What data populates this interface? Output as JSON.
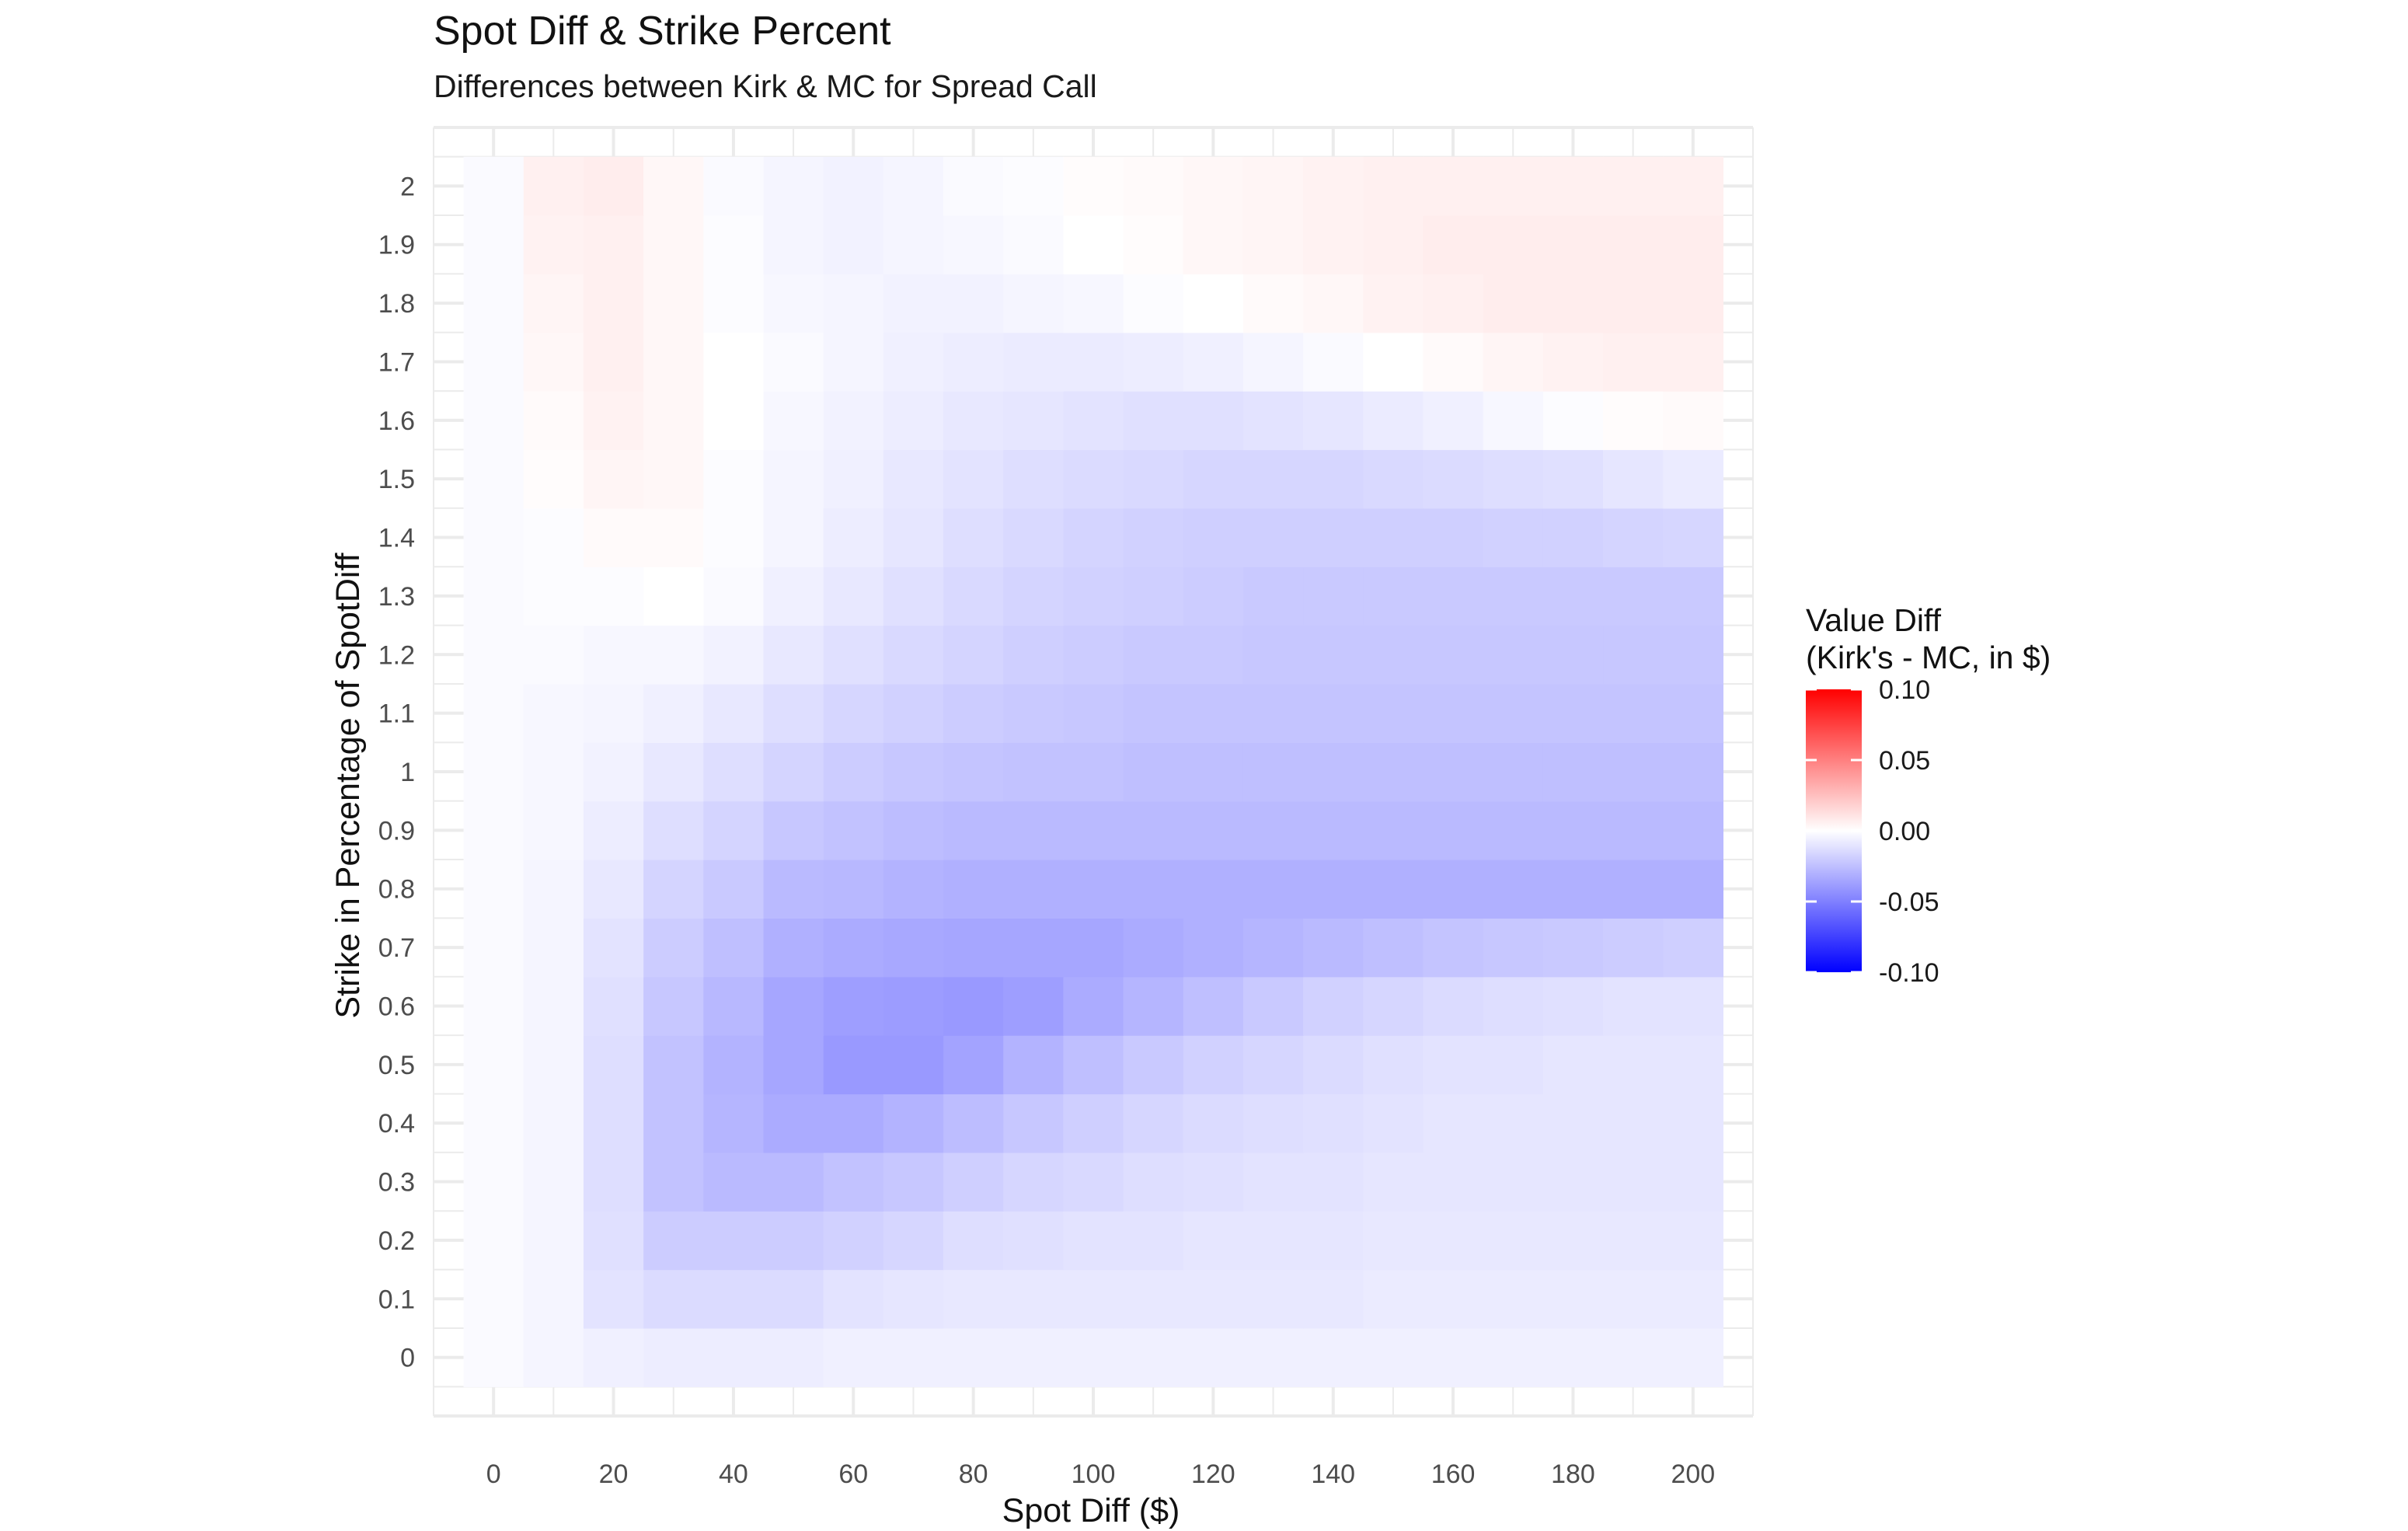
{
  "chart_data": {
    "type": "heatmap",
    "title": "Spot Diff & Strike Percent",
    "subtitle": "Differences between Kirk & MC for Spread Call",
    "xlabel": "Spot Diff ($)",
    "ylabel": "Strike in Percentage of SpotDiff",
    "x": [
      0,
      10,
      20,
      30,
      40,
      50,
      60,
      70,
      80,
      90,
      100,
      110,
      120,
      130,
      140,
      150,
      160,
      170,
      180,
      190,
      200
    ],
    "y": [
      0,
      0.1,
      0.2,
      0.3,
      0.4,
      0.5,
      0.6,
      0.7,
      0.8,
      0.9,
      1,
      1.1,
      1.2,
      1.3,
      1.4,
      1.5,
      1.6,
      1.7,
      1.8,
      1.9,
      2
    ],
    "x_ticks": [
      "0",
      "20",
      "40",
      "60",
      "80",
      "100",
      "120",
      "140",
      "160",
      "180",
      "200"
    ],
    "x_tick_values": [
      0,
      20,
      40,
      60,
      80,
      100,
      120,
      140,
      160,
      180,
      200
    ],
    "y_ticks": [
      "0",
      "0.1",
      "0.2",
      "0.3",
      "0.4",
      "0.5",
      "0.6",
      "0.7",
      "0.8",
      "0.9",
      "1",
      "1.1",
      "1.2",
      "1.3",
      "1.4",
      "1.5",
      "1.6",
      "1.7",
      "1.8",
      "1.9",
      "2"
    ],
    "xlim": [
      -10,
      210
    ],
    "ylim": [
      -0.1,
      2.1
    ],
    "grid": true,
    "legend": {
      "title_line1": "Value Diff",
      "title_line2": "(Kirk's - MC, in $)",
      "ticks": [
        "0.10",
        "0.05",
        "0.00",
        "-0.05",
        "-0.10"
      ],
      "tick_values": [
        0.1,
        0.05,
        0,
        -0.05,
        -0.1
      ],
      "range": [
        -0.1,
        0.1
      ],
      "low_color": "#0000ff",
      "mid_color": "#ffffff",
      "high_color": "#ff0000",
      "placement": "right"
    },
    "z": [
      [
        -0.002,
        -0.004,
        -0.006,
        -0.007,
        -0.007,
        -0.007,
        -0.006,
        -0.006,
        -0.006,
        -0.006,
        -0.006,
        -0.006,
        -0.006,
        -0.006,
        -0.006,
        -0.006,
        -0.006,
        -0.006,
        -0.006,
        -0.006,
        -0.006
      ],
      [
        -0.002,
        -0.004,
        -0.011,
        -0.014,
        -0.014,
        -0.014,
        -0.011,
        -0.01,
        -0.009,
        -0.009,
        -0.009,
        -0.009,
        -0.009,
        -0.009,
        -0.009,
        -0.008,
        -0.008,
        -0.008,
        -0.008,
        -0.008,
        -0.008
      ],
      [
        -0.002,
        -0.004,
        -0.012,
        -0.02,
        -0.02,
        -0.02,
        -0.018,
        -0.016,
        -0.013,
        -0.012,
        -0.011,
        -0.011,
        -0.01,
        -0.01,
        -0.01,
        -0.009,
        -0.009,
        -0.009,
        -0.009,
        -0.009,
        -0.009
      ],
      [
        -0.002,
        -0.004,
        -0.013,
        -0.024,
        -0.027,
        -0.027,
        -0.024,
        -0.022,
        -0.019,
        -0.016,
        -0.015,
        -0.013,
        -0.012,
        -0.011,
        -0.011,
        -0.01,
        -0.01,
        -0.01,
        -0.01,
        -0.01,
        -0.01
      ],
      [
        -0.002,
        -0.004,
        -0.013,
        -0.024,
        -0.029,
        -0.033,
        -0.033,
        -0.03,
        -0.026,
        -0.022,
        -0.019,
        -0.016,
        -0.014,
        -0.013,
        -0.012,
        -0.011,
        -0.01,
        -0.01,
        -0.01,
        -0.01,
        -0.01
      ],
      [
        -0.002,
        -0.004,
        -0.013,
        -0.024,
        -0.03,
        -0.035,
        -0.04,
        -0.04,
        -0.036,
        -0.03,
        -0.025,
        -0.021,
        -0.018,
        -0.016,
        -0.014,
        -0.012,
        -0.011,
        -0.011,
        -0.01,
        -0.01,
        -0.01
      ],
      [
        -0.002,
        -0.004,
        -0.012,
        -0.022,
        -0.028,
        -0.035,
        -0.038,
        -0.039,
        -0.04,
        -0.038,
        -0.033,
        -0.029,
        -0.025,
        -0.021,
        -0.018,
        -0.016,
        -0.014,
        -0.013,
        -0.012,
        -0.011,
        -0.011
      ],
      [
        -0.002,
        -0.004,
        -0.011,
        -0.02,
        -0.025,
        -0.031,
        -0.033,
        -0.034,
        -0.035,
        -0.035,
        -0.035,
        -0.033,
        -0.031,
        -0.029,
        -0.027,
        -0.025,
        -0.023,
        -0.022,
        -0.021,
        -0.02,
        -0.019
      ],
      [
        -0.002,
        -0.004,
        -0.009,
        -0.017,
        -0.021,
        -0.027,
        -0.028,
        -0.03,
        -0.031,
        -0.031,
        -0.031,
        -0.031,
        -0.031,
        -0.031,
        -0.031,
        -0.031,
        -0.031,
        -0.031,
        -0.031,
        -0.031,
        -0.031
      ],
      [
        -0.002,
        -0.003,
        -0.007,
        -0.013,
        -0.017,
        -0.022,
        -0.024,
        -0.026,
        -0.027,
        -0.027,
        -0.027,
        -0.027,
        -0.027,
        -0.027,
        -0.027,
        -0.027,
        -0.027,
        -0.027,
        -0.027,
        -0.027,
        -0.027
      ],
      [
        -0.002,
        -0.003,
        -0.005,
        -0.009,
        -0.013,
        -0.017,
        -0.02,
        -0.022,
        -0.023,
        -0.024,
        -0.024,
        -0.025,
        -0.025,
        -0.025,
        -0.025,
        -0.025,
        -0.025,
        -0.025,
        -0.025,
        -0.025,
        -0.025
      ],
      [
        -0.002,
        -0.003,
        -0.004,
        -0.006,
        -0.009,
        -0.013,
        -0.016,
        -0.018,
        -0.02,
        -0.021,
        -0.022,
        -0.023,
        -0.023,
        -0.023,
        -0.023,
        -0.023,
        -0.023,
        -0.023,
        -0.023,
        -0.023,
        -0.023
      ],
      [
        -0.002,
        -0.002,
        -0.003,
        -0.003,
        -0.005,
        -0.009,
        -0.012,
        -0.015,
        -0.017,
        -0.019,
        -0.02,
        -0.021,
        -0.021,
        -0.022,
        -0.022,
        -0.022,
        -0.022,
        -0.022,
        -0.022,
        -0.022,
        -0.022
      ],
      [
        -0.002,
        -0.001,
        -0.001,
        0.0,
        -0.002,
        -0.006,
        -0.009,
        -0.012,
        -0.015,
        -0.017,
        -0.018,
        -0.019,
        -0.02,
        -0.021,
        -0.021,
        -0.021,
        -0.021,
        -0.021,
        -0.021,
        -0.021,
        -0.021
      ],
      [
        -0.002,
        -0.001,
        0.002,
        0.002,
        -0.001,
        -0.004,
        -0.007,
        -0.01,
        -0.013,
        -0.015,
        -0.017,
        -0.018,
        -0.019,
        -0.019,
        -0.019,
        -0.019,
        -0.019,
        -0.018,
        -0.018,
        -0.017,
        -0.016
      ],
      [
        -0.002,
        0.001,
        0.004,
        0.003,
        -0.001,
        -0.004,
        -0.006,
        -0.009,
        -0.011,
        -0.013,
        -0.014,
        -0.015,
        -0.016,
        -0.016,
        -0.016,
        -0.015,
        -0.014,
        -0.013,
        -0.012,
        -0.01,
        -0.008
      ],
      [
        -0.002,
        0.002,
        0.005,
        0.003,
        0.0,
        -0.003,
        -0.005,
        -0.007,
        -0.009,
        -0.01,
        -0.011,
        -0.012,
        -0.012,
        -0.011,
        -0.01,
        -0.008,
        -0.006,
        -0.003,
        -0.001,
        0.001,
        0.002
      ],
      [
        -0.002,
        0.003,
        0.006,
        0.003,
        0.0,
        -0.002,
        -0.004,
        -0.006,
        -0.007,
        -0.008,
        -0.008,
        -0.007,
        -0.006,
        -0.004,
        -0.002,
        0.0,
        0.002,
        0.004,
        0.005,
        0.006,
        0.006
      ],
      [
        -0.002,
        0.004,
        0.006,
        0.003,
        -0.001,
        -0.003,
        -0.004,
        -0.005,
        -0.005,
        -0.004,
        -0.003,
        -0.001,
        0.0,
        0.002,
        0.003,
        0.005,
        0.006,
        0.007,
        0.007,
        0.007,
        0.007
      ],
      [
        -0.002,
        0.005,
        0.006,
        0.003,
        -0.001,
        -0.004,
        -0.005,
        -0.004,
        -0.003,
        -0.002,
        0.0,
        0.001,
        0.003,
        0.004,
        0.005,
        0.006,
        0.007,
        0.007,
        0.007,
        0.007,
        0.007
      ],
      [
        -0.002,
        0.006,
        0.007,
        0.003,
        -0.002,
        -0.004,
        -0.005,
        -0.004,
        -0.002,
        -0.001,
        0.001,
        0.002,
        0.003,
        0.004,
        0.005,
        0.006,
        0.006,
        0.006,
        0.006,
        0.006,
        0.006
      ]
    ]
  }
}
